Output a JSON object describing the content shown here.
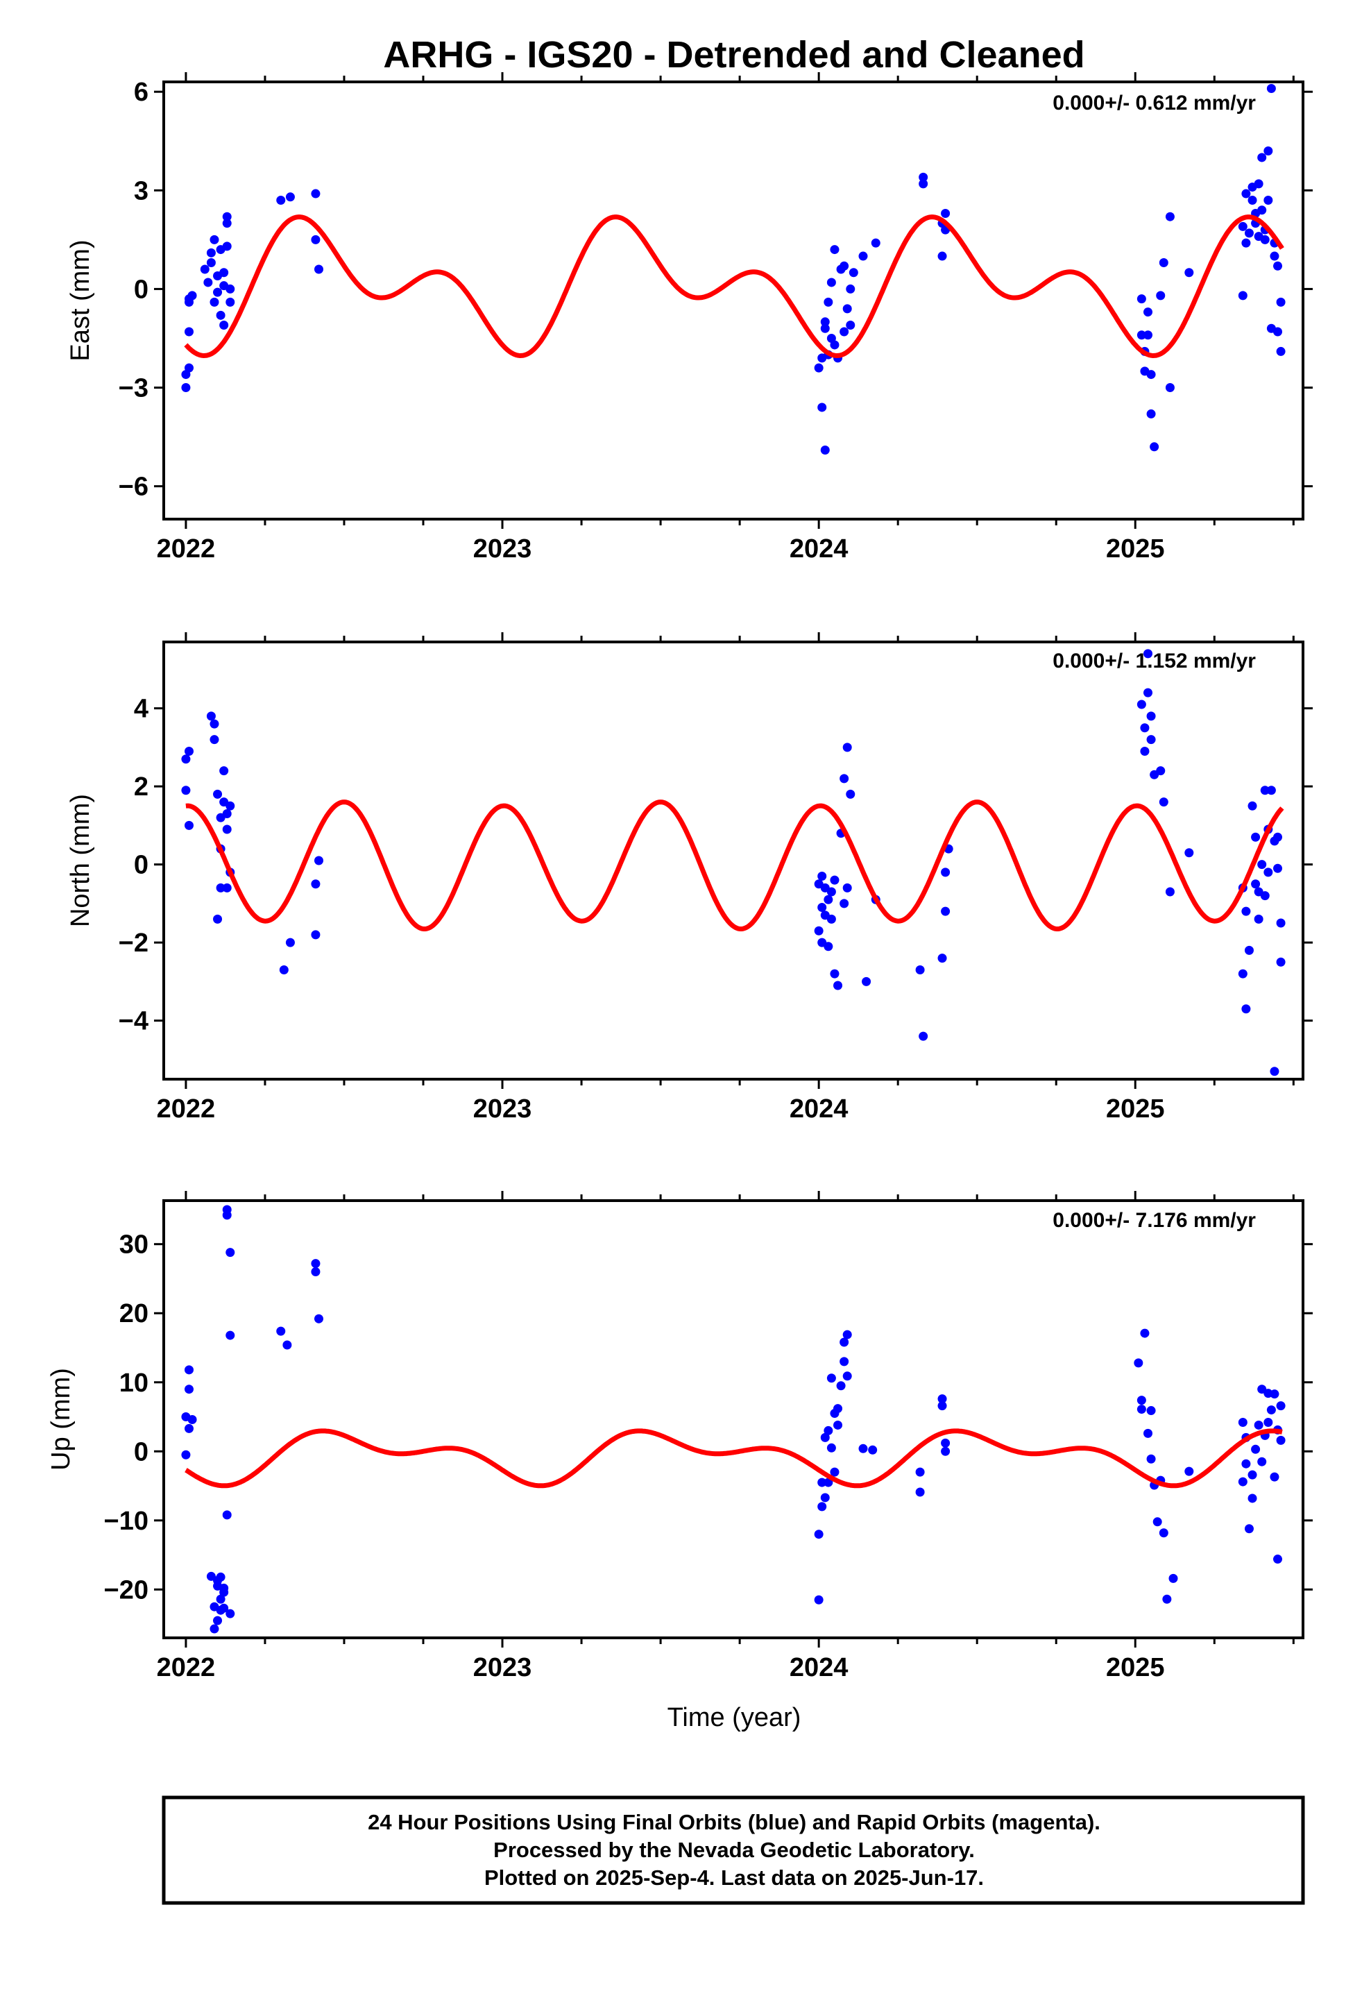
{
  "title": "ARHG - IGS20 - Detrended and Cleaned",
  "xlabel": "Time (year)",
  "footer": [
    "24 Hour Positions Using Final Orbits (blue) and Rapid Orbits (magenta).",
    "Processed by the Nevada Geodetic Laboratory.",
    "Plotted on 2025-Sep-4. Last data on 2025-Jun-17."
  ],
  "colors": {
    "points": "#0000ff",
    "model": "#ff0000",
    "axes": "#000000"
  },
  "chart_data": [
    {
      "type": "scatter",
      "ylabel": "East (mm)",
      "annotation": "0.000+/- 0.612 mm/yr",
      "xlim": [
        2021.93,
        2025.53
      ],
      "ylim": [
        -7.0,
        6.3
      ],
      "xticks": [
        2022,
        2023,
        2024,
        2025
      ],
      "xtick_labels": [
        "2022",
        "2023",
        "2024",
        "2025"
      ],
      "yticks": [
        -6,
        -3,
        0,
        3,
        6
      ],
      "ytick_labels": [
        "−6",
        "−3",
        "0",
        "3",
        "6"
      ],
      "model": {
        "name": "seasonal fit",
        "amp1": [
          0.3,
          -1.2
        ],
        "amp2": [
          -1.0,
          -0.6
        ],
        "offset": 0.1
      },
      "series": [
        {
          "x": [
            2022.0,
            2022.0,
            2022.01,
            2022.01,
            2022.01,
            2022.01,
            2022.02,
            2022.06,
            2022.07,
            2022.08,
            2022.08,
            2022.09,
            2022.09,
            2022.1,
            2022.1,
            2022.11,
            2022.11,
            2022.12,
            2022.12,
            2022.12,
            2022.13,
            2022.13,
            2022.13,
            2022.14,
            2022.14,
            2022.3,
            2022.33,
            2022.41,
            2022.41,
            2022.42,
            2024.0,
            2024.01,
            2024.01,
            2024.02,
            2024.02,
            2024.02,
            2024.03,
            2024.03,
            2024.04,
            2024.04,
            2024.05,
            2024.05,
            2024.06,
            2024.07,
            2024.08,
            2024.08,
            2024.09,
            2024.1,
            2024.1,
            2024.11,
            2024.14,
            2024.18,
            2024.33,
            2024.33,
            2024.39,
            2024.39,
            2024.4,
            2024.4,
            2025.02,
            2025.02,
            2025.03,
            2025.03,
            2025.04,
            2025.04,
            2025.05,
            2025.05,
            2025.06,
            2025.08,
            2025.09,
            2025.11,
            2025.11,
            2025.17,
            2025.34,
            2025.34,
            2025.35,
            2025.35,
            2025.36,
            2025.37,
            2025.37,
            2025.38,
            2025.38,
            2025.39,
            2025.39,
            2025.4,
            2025.4,
            2025.41,
            2025.41,
            2025.42,
            2025.42,
            2025.43,
            2025.43,
            2025.44,
            2025.44,
            2025.45,
            2025.45,
            2025.46,
            2025.46
          ],
          "y": [
            -3.0,
            -2.6,
            -0.3,
            -0.4,
            -1.3,
            -2.4,
            -0.2,
            0.6,
            0.2,
            1.1,
            0.8,
            1.5,
            -0.4,
            0.4,
            -0.1,
            -0.8,
            1.2,
            -1.1,
            0.5,
            0.1,
            2.2,
            2.0,
            1.3,
            -0.4,
            0.0,
            2.7,
            2.8,
            2.9,
            1.5,
            0.6,
            -2.4,
            -2.1,
            -3.6,
            -4.9,
            -1.2,
            -1.0,
            -0.4,
            -2.0,
            -1.5,
            0.2,
            1.2,
            -1.7,
            -2.1,
            0.6,
            -1.3,
            0.7,
            -0.6,
            -1.1,
            0.0,
            0.5,
            1.0,
            1.4,
            3.4,
            3.2,
            2.0,
            1.0,
            2.3,
            1.8,
            -1.4,
            -0.3,
            -1.9,
            -2.5,
            -0.7,
            -1.4,
            -2.6,
            -3.8,
            -4.8,
            -0.2,
            0.8,
            2.2,
            -3.0,
            0.5,
            -0.2,
            1.9,
            1.4,
            2.9,
            1.7,
            3.1,
            2.7,
            2.3,
            2.0,
            3.2,
            1.6,
            2.4,
            4.0,
            1.8,
            1.5,
            2.7,
            4.2,
            6.1,
            -1.2,
            1.4,
            1.0,
            0.7,
            -1.3,
            -1.9,
            -0.4
          ]
        }
      ]
    },
    {
      "type": "scatter",
      "ylabel": "North (mm)",
      "annotation": "0.000+/- 1.152 mm/yr",
      "xlim": [
        2021.93,
        2025.53
      ],
      "ylim": [
        -5.5,
        5.7
      ],
      "xticks": [
        2022,
        2023,
        2024,
        2025
      ],
      "xtick_labels": [
        "2022",
        "2023",
        "2024",
        "2025"
      ],
      "yticks": [
        -4,
        -2,
        0,
        2,
        4
      ],
      "ytick_labels": [
        "−4",
        "−2",
        "0",
        "2",
        "4"
      ],
      "model": {
        "name": "seasonal fit",
        "amp1": [
          0.1,
          -0.05
        ],
        "amp2": [
          0.05,
          1.55
        ],
        "offset": 0.0
      },
      "series": [
        {
          "x": [
            2022.0,
            2022.0,
            2022.01,
            2022.01,
            2022.08,
            2022.09,
            2022.09,
            2022.1,
            2022.1,
            2022.11,
            2022.11,
            2022.11,
            2022.12,
            2022.12,
            2022.13,
            2022.13,
            2022.13,
            2022.14,
            2022.14,
            2022.31,
            2022.33,
            2022.41,
            2022.41,
            2022.42,
            2024.0,
            2024.0,
            2024.01,
            2024.01,
            2024.01,
            2024.02,
            2024.02,
            2024.03,
            2024.03,
            2024.04,
            2024.04,
            2024.05,
            2024.05,
            2024.06,
            2024.07,
            2024.08,
            2024.08,
            2024.09,
            2024.09,
            2024.1,
            2024.15,
            2024.18,
            2024.32,
            2024.33,
            2024.39,
            2024.4,
            2024.4,
            2024.41,
            2025.02,
            2025.03,
            2025.03,
            2025.04,
            2025.04,
            2025.05,
            2025.05,
            2025.06,
            2025.08,
            2025.09,
            2025.11,
            2025.17,
            2025.34,
            2025.34,
            2025.35,
            2025.35,
            2025.36,
            2025.37,
            2025.38,
            2025.38,
            2025.39,
            2025.39,
            2025.4,
            2025.41,
            2025.41,
            2025.42,
            2025.42,
            2025.43,
            2025.44,
            2025.44,
            2025.45,
            2025.45,
            2025.46,
            2025.46
          ],
          "y": [
            2.7,
            1.9,
            2.9,
            1.0,
            3.8,
            3.6,
            3.2,
            1.8,
            -1.4,
            1.2,
            0.4,
            -0.6,
            2.4,
            1.6,
            1.3,
            0.9,
            -0.6,
            -0.2,
            1.5,
            -2.7,
            -2.0,
            -1.8,
            -0.5,
            0.1,
            -0.5,
            -1.7,
            -0.3,
            -1.1,
            -2.0,
            -1.3,
            -0.6,
            -0.9,
            -2.1,
            -1.4,
            -0.7,
            -2.8,
            -0.4,
            -3.1,
            0.8,
            2.2,
            -1.0,
            -0.6,
            3.0,
            1.8,
            -3.0,
            -0.9,
            -2.7,
            -4.4,
            -2.4,
            -1.2,
            -0.2,
            0.4,
            4.1,
            3.5,
            2.9,
            5.4,
            4.4,
            3.2,
            3.8,
            2.3,
            2.4,
            1.6,
            -0.7,
            0.3,
            -2.8,
            -0.6,
            -3.7,
            -1.2,
            -2.2,
            1.5,
            -0.5,
            0.7,
            -0.7,
            -1.4,
            0.0,
            1.9,
            -0.8,
            0.9,
            -0.2,
            1.9,
            0.6,
            -5.3,
            0.7,
            -0.1,
            -1.5,
            -2.5
          ]
        }
      ]
    },
    {
      "type": "scatter",
      "ylabel": "Up (mm)",
      "annotation": "0.000+/- 7.176 mm/yr",
      "xlim": [
        2021.93,
        2025.53
      ],
      "ylim": [
        -27,
        36.3
      ],
      "xticks": [
        2022,
        2023,
        2024,
        2025
      ],
      "xtick_labels": [
        "2022",
        "2023",
        "2024",
        "2025"
      ],
      "yticks": [
        -20,
        -10,
        0,
        10,
        20,
        30
      ],
      "ytick_labels": [
        "−20",
        "−10",
        "0",
        "10",
        "20",
        "30"
      ],
      "model": {
        "name": "seasonal fit",
        "amp1": [
          -1.0,
          -2.5
        ],
        "amp2": [
          -1.9,
          0.4
        ],
        "offset": -0.6
      },
      "series": [
        {
          "x": [
            2022.0,
            2022.0,
            2022.01,
            2022.01,
            2022.01,
            2022.02,
            2022.08,
            2022.09,
            2022.09,
            2022.1,
            2022.1,
            2022.1,
            2022.11,
            2022.11,
            2022.11,
            2022.12,
            2022.12,
            2022.12,
            2022.13,
            2022.13,
            2022.13,
            2022.14,
            2022.14,
            2022.14,
            2022.3,
            2022.32,
            2022.41,
            2022.41,
            2022.42,
            2024.0,
            2024.0,
            2024.01,
            2024.01,
            2024.02,
            2024.02,
            2024.03,
            2024.03,
            2024.04,
            2024.04,
            2024.05,
            2024.05,
            2024.06,
            2024.06,
            2024.07,
            2024.08,
            2024.08,
            2024.09,
            2024.09,
            2024.14,
            2024.17,
            2024.32,
            2024.32,
            2024.39,
            2024.39,
            2024.4,
            2024.4,
            2025.01,
            2025.02,
            2025.02,
            2025.03,
            2025.04,
            2025.05,
            2025.05,
            2025.06,
            2025.07,
            2025.08,
            2025.09,
            2025.1,
            2025.12,
            2025.17,
            2025.34,
            2025.34,
            2025.35,
            2025.35,
            2025.36,
            2025.37,
            2025.37,
            2025.38,
            2025.39,
            2025.4,
            2025.4,
            2025.41,
            2025.42,
            2025.42,
            2025.43,
            2025.44,
            2025.44,
            2025.45,
            2025.45,
            2025.46,
            2025.46
          ],
          "y": [
            5.0,
            -0.5,
            11.8,
            9.0,
            3.3,
            4.6,
            -18.1,
            -25.7,
            -22.5,
            -18.7,
            -24.5,
            -19.5,
            -21.4,
            -23.0,
            -18.2,
            -20.4,
            -22.7,
            -19.8,
            -9.2,
            35.0,
            34.2,
            28.8,
            16.8,
            -23.5,
            17.4,
            15.4,
            27.2,
            26.0,
            19.2,
            -12.0,
            -21.5,
            -4.5,
            -8.0,
            -6.7,
            2.0,
            3.0,
            -4.5,
            10.6,
            0.5,
            5.5,
            -3.0,
            3.8,
            6.2,
            9.5,
            13.0,
            15.8,
            16.9,
            10.9,
            0.4,
            0.2,
            -3.0,
            -5.9,
            7.6,
            6.6,
            1.2,
            0.0,
            12.8,
            6.1,
            7.4,
            17.1,
            2.6,
            -1.1,
            5.9,
            -4.9,
            -10.2,
            -4.2,
            -11.8,
            -21.4,
            -18.4,
            -2.9,
            4.2,
            -4.4,
            2.0,
            -1.8,
            -11.2,
            -6.8,
            -3.4,
            0.3,
            3.8,
            9.0,
            -1.5,
            2.3,
            8.4,
            4.2,
            6.0,
            -3.7,
            8.3,
            -15.6,
            3.1,
            6.6,
            1.6
          ]
        }
      ]
    }
  ]
}
